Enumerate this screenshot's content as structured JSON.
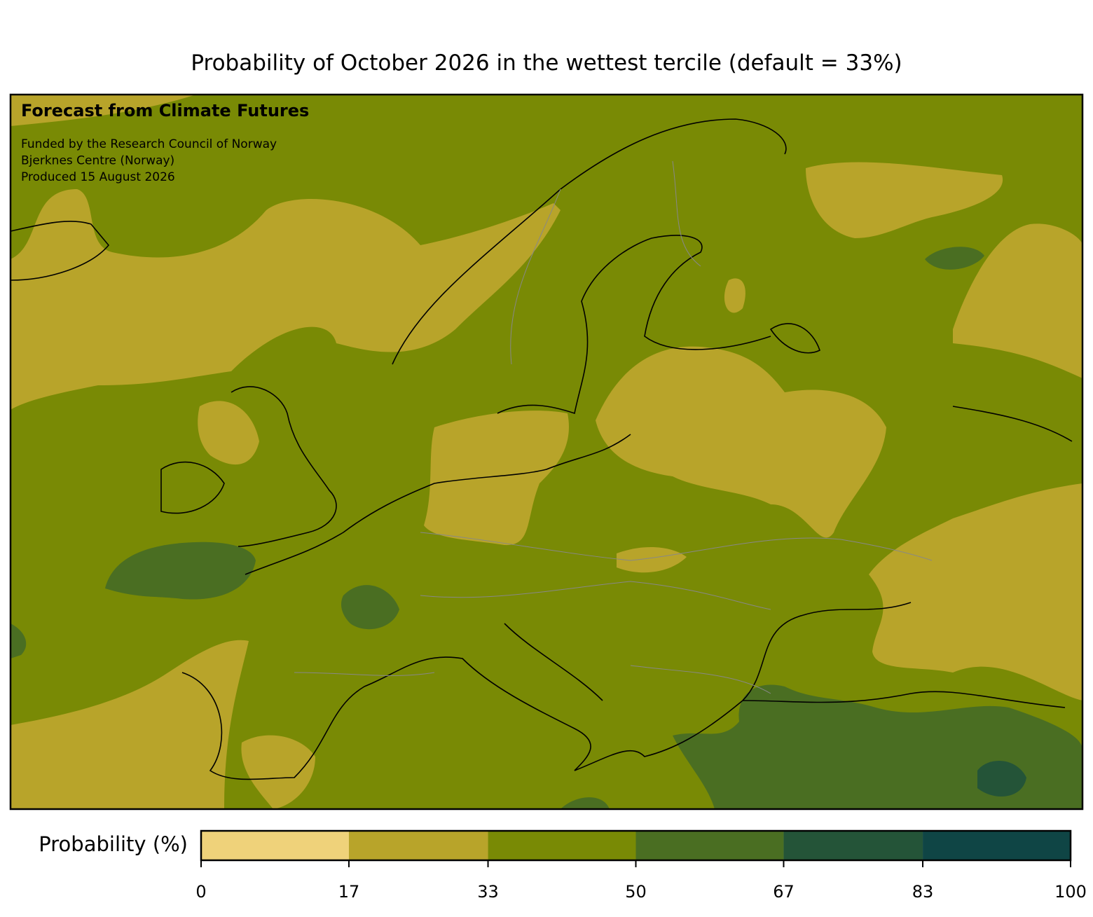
{
  "title": "Probability of October 2026 in the wettest tercile (default = 33%)",
  "annotations": {
    "heading": "Forecast from Climate Futures",
    "lines": [
      "Funded by the Research Council of Norway",
      "Bjerknes Centre (Norway)",
      "Produced 15 August 2026"
    ]
  },
  "colorbar": {
    "label": "Probability (%)",
    "range": [
      0,
      100
    ],
    "ticks": [
      0,
      17,
      33,
      50,
      67,
      83,
      100
    ],
    "colors": [
      "#efd27a",
      "#b8a42a",
      "#798a05",
      "#4a6e22",
      "#245438",
      "#0f4545"
    ]
  }
}
